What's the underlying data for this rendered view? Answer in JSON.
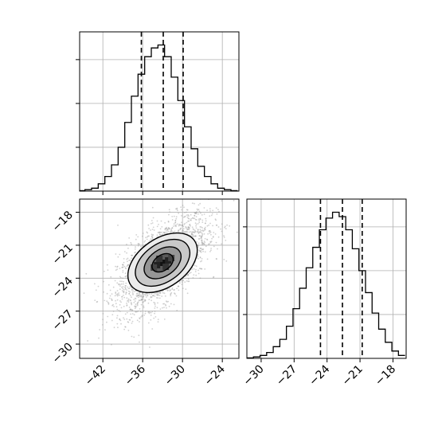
{
  "chart_data": {
    "type": "corner",
    "parameters": [
      "",
      ""
    ],
    "panels": [
      {
        "id": "hist-x",
        "type": "histogram",
        "x_range": [
          -45.5,
          -21.5
        ],
        "bins": [
          {
            "x": -45.2,
            "count": 0.3
          },
          {
            "x": -44.2,
            "count": 1
          },
          {
            "x": -43.2,
            "count": 2
          },
          {
            "x": -42.2,
            "count": 5
          },
          {
            "x": -41.2,
            "count": 10
          },
          {
            "x": -40.2,
            "count": 18
          },
          {
            "x": -39.2,
            "count": 30
          },
          {
            "x": -38.2,
            "count": 47
          },
          {
            "x": -37.2,
            "count": 65
          },
          {
            "x": -36.2,
            "count": 80
          },
          {
            "x": -35.2,
            "count": 92
          },
          {
            "x": -34.2,
            "count": 98
          },
          {
            "x": -33.2,
            "count": 100
          },
          {
            "x": -32.2,
            "count": 92
          },
          {
            "x": -31.2,
            "count": 78
          },
          {
            "x": -30.2,
            "count": 62
          },
          {
            "x": -29.2,
            "count": 44
          },
          {
            "x": -28.2,
            "count": 29
          },
          {
            "x": -27.2,
            "count": 17
          },
          {
            "x": -26.2,
            "count": 10
          },
          {
            "x": -25.2,
            "count": 5
          },
          {
            "x": -24.2,
            "count": 2
          },
          {
            "x": -23.2,
            "count": 1
          },
          {
            "x": -22.2,
            "count": 0.3
          }
        ],
        "quantile_lines": [
          -36.2,
          -32.9,
          -29.9
        ]
      },
      {
        "id": "scatter-2d",
        "type": "2d-density",
        "x_range": [
          -45.5,
          -21.5
        ],
        "y_range": [
          -31.3,
          -16.8
        ],
        "x_ticks": [
          "−42",
          "−36",
          "−30",
          "−24"
        ],
        "x_tick_values": [
          -42,
          -36,
          -30,
          -24
        ],
        "y_ticks": [
          "−18",
          "−21",
          "−24",
          "−27",
          "−30"
        ],
        "y_tick_values": [
          -18,
          -21,
          -24,
          -27,
          -30
        ],
        "center": [
          -33.0,
          -22.6
        ],
        "contour_levels": [
          {
            "sx": 3.2,
            "sy": 2.1,
            "angle": 35
          },
          {
            "sx": 5.6,
            "sy": 3.6,
            "angle": 35
          },
          {
            "sx": 8.3,
            "sy": 5.2,
            "angle": 35
          },
          {
            "sx": 10.6,
            "sy": 6.6,
            "angle": 35
          }
        ]
      },
      {
        "id": "hist-y",
        "type": "histogram",
        "x_range": [
          -31.3,
          -16.8
        ],
        "x_ticks": [
          "−30",
          "−27",
          "−24",
          "−21",
          "−18"
        ],
        "x_tick_values": [
          -30,
          -27,
          -24,
          -21,
          -18
        ],
        "bins": [
          {
            "x": -31.0,
            "count": 0.3
          },
          {
            "x": -30.4,
            "count": 1
          },
          {
            "x": -29.8,
            "count": 2
          },
          {
            "x": -29.2,
            "count": 4
          },
          {
            "x": -28.6,
            "count": 8
          },
          {
            "x": -28.0,
            "count": 13
          },
          {
            "x": -27.4,
            "count": 22
          },
          {
            "x": -26.8,
            "count": 34
          },
          {
            "x": -26.2,
            "count": 48
          },
          {
            "x": -25.6,
            "count": 62
          },
          {
            "x": -25.0,
            "count": 76
          },
          {
            "x": -24.4,
            "count": 88
          },
          {
            "x": -23.8,
            "count": 96
          },
          {
            "x": -23.2,
            "count": 100
          },
          {
            "x": -22.6,
            "count": 97
          },
          {
            "x": -22.0,
            "count": 88
          },
          {
            "x": -21.4,
            "count": 75
          },
          {
            "x": -20.8,
            "count": 60
          },
          {
            "x": -20.2,
            "count": 45
          },
          {
            "x": -19.6,
            "count": 31
          },
          {
            "x": -19.0,
            "count": 20
          },
          {
            "x": -18.4,
            "count": 11
          },
          {
            "x": -17.8,
            "count": 5
          },
          {
            "x": -17.2,
            "count": 2
          }
        ],
        "quantile_lines": [
          -24.6,
          -22.6,
          -20.8
        ]
      }
    ],
    "grid": true,
    "line_color": "#000000",
    "grid_color": "#b0b0b0",
    "point_color": "#999999"
  }
}
